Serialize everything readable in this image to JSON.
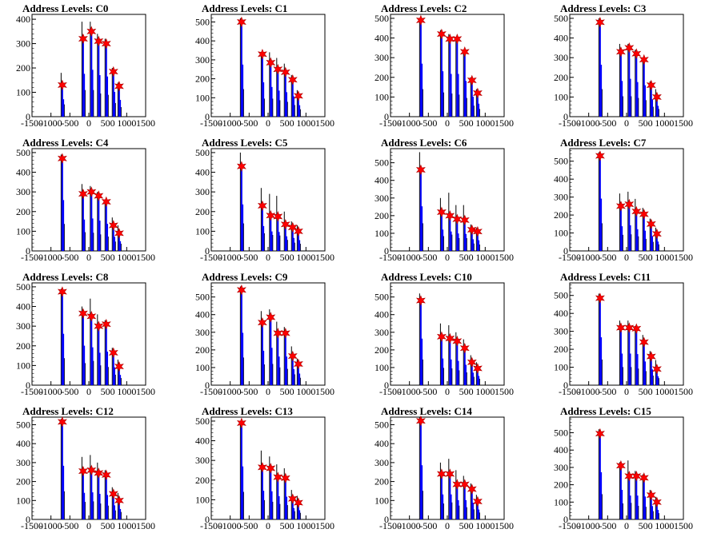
{
  "colors": {
    "blue": "#0000ff",
    "black": "#000000",
    "marker": "#ff0000"
  },
  "chart_data": [
    {
      "type": "histogram",
      "title": "Address Levels: C0",
      "xlim": [
        -1500,
        1500
      ],
      "ylim": [
        0,
        420
      ],
      "xticks": [
        "-1500",
        "-1000",
        "-500",
        "0",
        "500",
        "1000",
        "1500"
      ],
      "yticks": [
        "0",
        "100",
        "200",
        "300",
        "400"
      ],
      "peaks_x": [
        -700,
        -150,
        70,
        260,
        460,
        650,
        800
      ],
      "peaks_y": [
        130,
        320,
        350,
        310,
        300,
        185,
        125
      ],
      "black_tops": [
        180,
        390,
        390,
        340,
        320,
        200,
        140
      ]
    },
    {
      "type": "histogram",
      "title": "Address Levels: C1",
      "xlim": [
        -1500,
        1500
      ],
      "ylim": [
        0,
        540
      ],
      "xticks": [
        "-1500",
        "-1000",
        "-500",
        "0",
        "500",
        "1000",
        "1500"
      ],
      "yticks": [
        "0",
        "100",
        "200",
        "300",
        "400",
        "500"
      ],
      "peaks_x": [
        -700,
        -150,
        70,
        260,
        460,
        650,
        800
      ],
      "peaks_y": [
        500,
        330,
        285,
        250,
        235,
        195,
        110
      ],
      "black_tops": [
        520,
        340,
        340,
        310,
        280,
        220,
        140
      ]
    },
    {
      "type": "histogram",
      "title": "Address Levels: C2",
      "xlim": [
        -1500,
        1500
      ],
      "ylim": [
        0,
        520
      ],
      "xticks": [
        "-1500",
        "-1000",
        "-500",
        "0",
        "500",
        "1000",
        "1500"
      ],
      "yticks": [
        "0",
        "100",
        "200",
        "300",
        "400",
        "500"
      ],
      "peaks_x": [
        -700,
        -150,
        70,
        260,
        460,
        650,
        800
      ],
      "peaks_y": [
        490,
        420,
        395,
        395,
        330,
        185,
        120
      ],
      "black_tops": [
        500,
        440,
        420,
        400,
        340,
        200,
        140
      ]
    },
    {
      "type": "histogram",
      "title": "Address Levels: C3",
      "xlim": [
        -1500,
        1500
      ],
      "ylim": [
        0,
        520
      ],
      "xticks": [
        "-1500",
        "-1000",
        "-500",
        "0",
        "500",
        "1000",
        "1500"
      ],
      "yticks": [
        "0",
        "100",
        "200",
        "300",
        "400",
        "500"
      ],
      "peaks_x": [
        -700,
        -150,
        70,
        260,
        460,
        650,
        800
      ],
      "peaks_y": [
        480,
        330,
        350,
        320,
        290,
        160,
        100
      ],
      "black_tops": [
        500,
        370,
        370,
        340,
        300,
        180,
        140
      ]
    },
    {
      "type": "histogram",
      "title": "Address Levels: C4",
      "xlim": [
        -1500,
        1500
      ],
      "ylim": [
        0,
        520
      ],
      "xticks": [
        "-1500",
        "-1000",
        "-500",
        "0",
        "500",
        "1000",
        "1500"
      ],
      "yticks": [
        "0",
        "100",
        "200",
        "300",
        "400",
        "500"
      ],
      "peaks_x": [
        -700,
        -150,
        70,
        260,
        460,
        650,
        800
      ],
      "peaks_y": [
        470,
        290,
        300,
        280,
        250,
        130,
        90
      ],
      "black_tops": [
        490,
        340,
        330,
        300,
        260,
        170,
        130
      ]
    },
    {
      "type": "histogram",
      "title": "Address Levels: C5",
      "xlim": [
        -1500,
        1500
      ],
      "ylim": [
        0,
        520
      ],
      "xticks": [
        "-1500",
        "-1000",
        "-500",
        "0",
        "500",
        "1000",
        "1500"
      ],
      "yticks": [
        "0",
        "100",
        "200",
        "300",
        "400",
        "500"
      ],
      "peaks_x": [
        -700,
        -150,
        70,
        260,
        460,
        650,
        800
      ],
      "peaks_y": [
        430,
        230,
        180,
        175,
        135,
        120,
        100
      ],
      "black_tops": [
        500,
        320,
        290,
        280,
        200,
        150,
        130
      ]
    },
    {
      "type": "histogram",
      "title": "Address Levels: C6",
      "xlim": [
        -1500,
        1500
      ],
      "ylim": [
        0,
        580
      ],
      "xticks": [
        "-1500",
        "-1000",
        "-500",
        "0",
        "500",
        "1000",
        "1500"
      ],
      "yticks": [
        "0",
        "100",
        "200",
        "300",
        "400",
        "500"
      ],
      "peaks_x": [
        -700,
        -150,
        70,
        260,
        460,
        650,
        800
      ],
      "peaks_y": [
        460,
        220,
        200,
        180,
        175,
        120,
        110
      ],
      "black_tops": [
        560,
        300,
        330,
        260,
        260,
        150,
        130
      ]
    },
    {
      "type": "histogram",
      "title": "Address Levels: C7",
      "xlim": [
        -1500,
        1500
      ],
      "ylim": [
        0,
        570
      ],
      "xticks": [
        "-1500",
        "-1000",
        "-500",
        "0",
        "500",
        "1000",
        "1500"
      ],
      "yticks": [
        "0",
        "100",
        "200",
        "300",
        "400",
        "500"
      ],
      "peaks_x": [
        -700,
        -150,
        70,
        260,
        460,
        650,
        800
      ],
      "peaks_y": [
        530,
        250,
        260,
        220,
        205,
        150,
        95
      ],
      "black_tops": [
        550,
        320,
        330,
        290,
        240,
        180,
        130
      ]
    },
    {
      "type": "histogram",
      "title": "Address Levels: C8",
      "xlim": [
        -1500,
        1500
      ],
      "ylim": [
        0,
        520
      ],
      "xticks": [
        "-1500",
        "-1000",
        "-500",
        "0",
        "500",
        "1000",
        "1500"
      ],
      "yticks": [
        "0",
        "100",
        "200",
        "300",
        "400",
        "500"
      ],
      "peaks_x": [
        -700,
        -150,
        70,
        260,
        460,
        650,
        800
      ],
      "peaks_y": [
        475,
        365,
        350,
        300,
        310,
        165,
        95
      ],
      "black_tops": [
        490,
        400,
        440,
        360,
        330,
        190,
        130
      ]
    },
    {
      "type": "histogram",
      "title": "Address Levels: C9",
      "xlim": [
        -1500,
        1500
      ],
      "ylim": [
        0,
        580
      ],
      "xticks": [
        "-1500",
        "-1000",
        "-500",
        "0",
        "500",
        "1000",
        "1500"
      ],
      "yticks": [
        "0",
        "100",
        "200",
        "300",
        "400",
        "500"
      ],
      "peaks_x": [
        -700,
        -150,
        70,
        260,
        460,
        650,
        800
      ],
      "peaks_y": [
        540,
        355,
        385,
        295,
        295,
        165,
        120
      ],
      "black_tops": [
        560,
        420,
        430,
        360,
        330,
        220,
        150
      ]
    },
    {
      "type": "histogram",
      "title": "Address Levels: C10",
      "xlim": [
        -1500,
        1500
      ],
      "ylim": [
        0,
        580
      ],
      "xticks": [
        "-1500",
        "-1000",
        "-500",
        "0",
        "500",
        "1000",
        "1500"
      ],
      "yticks": [
        "0",
        "100",
        "200",
        "300",
        "400",
        "500"
      ],
      "peaks_x": [
        -700,
        -150,
        70,
        260,
        460,
        650,
        800
      ],
      "peaks_y": [
        480,
        275,
        265,
        250,
        210,
        130,
        95
      ],
      "black_tops": [
        520,
        350,
        340,
        300,
        260,
        170,
        130
      ]
    },
    {
      "type": "histogram",
      "title": "Address Levels: C11",
      "xlim": [
        -1500,
        1500
      ],
      "ylim": [
        0,
        570
      ],
      "xticks": [
        "-1500",
        "-1000",
        "-500",
        "0",
        "500",
        "1000",
        "1500"
      ],
      "yticks": [
        "0",
        "100",
        "200",
        "300",
        "400",
        "500"
      ],
      "peaks_x": [
        -700,
        -150,
        70,
        260,
        460,
        650,
        800
      ],
      "peaks_y": [
        485,
        320,
        320,
        315,
        240,
        160,
        90
      ],
      "black_tops": [
        510,
        360,
        360,
        330,
        280,
        190,
        140
      ]
    },
    {
      "type": "histogram",
      "title": "Address Levels: C12",
      "xlim": [
        -1500,
        1500
      ],
      "ylim": [
        0,
        540
      ],
      "xticks": [
        "-1500",
        "-1000",
        "-500",
        "0",
        "500",
        "1000",
        "1500"
      ],
      "yticks": [
        "0",
        "100",
        "200",
        "300",
        "400",
        "500"
      ],
      "peaks_x": [
        -700,
        -150,
        70,
        260,
        460,
        650,
        800
      ],
      "peaks_y": [
        515,
        255,
        260,
        245,
        235,
        135,
        100
      ],
      "black_tops": [
        530,
        330,
        340,
        300,
        260,
        170,
        140
      ]
    },
    {
      "type": "histogram",
      "title": "Address Levels: C13",
      "xlim": [
        -1500,
        1500
      ],
      "ylim": [
        0,
        520
      ],
      "xticks": [
        "-1500",
        "-1000",
        "-500",
        "0",
        "500",
        "1000",
        "1500"
      ],
      "yticks": [
        "0",
        "100",
        "200",
        "300",
        "400",
        "500"
      ],
      "peaks_x": [
        -700,
        -150,
        70,
        260,
        460,
        650,
        800
      ],
      "peaks_y": [
        490,
        265,
        260,
        215,
        210,
        105,
        85
      ],
      "black_tops": [
        500,
        350,
        320,
        280,
        260,
        150,
        120
      ]
    },
    {
      "type": "histogram",
      "title": "Address Levels: C14",
      "xlim": [
        -1500,
        1500
      ],
      "ylim": [
        0,
        540
      ],
      "xticks": [
        "-1500",
        "-1000",
        "-500",
        "0",
        "500",
        "1000",
        "1500"
      ],
      "yticks": [
        "0",
        "100",
        "200",
        "300",
        "400",
        "500"
      ],
      "peaks_x": [
        -700,
        -150,
        70,
        260,
        460,
        650,
        800
      ],
      "peaks_y": [
        520,
        240,
        240,
        185,
        185,
        160,
        95
      ],
      "black_tops": [
        540,
        300,
        320,
        260,
        230,
        190,
        130
      ]
    },
    {
      "type": "histogram",
      "title": "Address Levels: C15",
      "xlim": [
        -1500,
        1500
      ],
      "ylim": [
        0,
        590
      ],
      "xticks": [
        "-1500",
        "-1000",
        "-500",
        "0",
        "500",
        "1000",
        "1500"
      ],
      "yticks": [
        "0",
        "100",
        "200",
        "300",
        "400",
        "500"
      ],
      "peaks_x": [
        -700,
        -150,
        70,
        260,
        460,
        650,
        800
      ],
      "peaks_y": [
        495,
        310,
        250,
        250,
        240,
        140,
        100
      ],
      "black_tops": [
        520,
        330,
        340,
        280,
        260,
        170,
        130
      ]
    }
  ]
}
